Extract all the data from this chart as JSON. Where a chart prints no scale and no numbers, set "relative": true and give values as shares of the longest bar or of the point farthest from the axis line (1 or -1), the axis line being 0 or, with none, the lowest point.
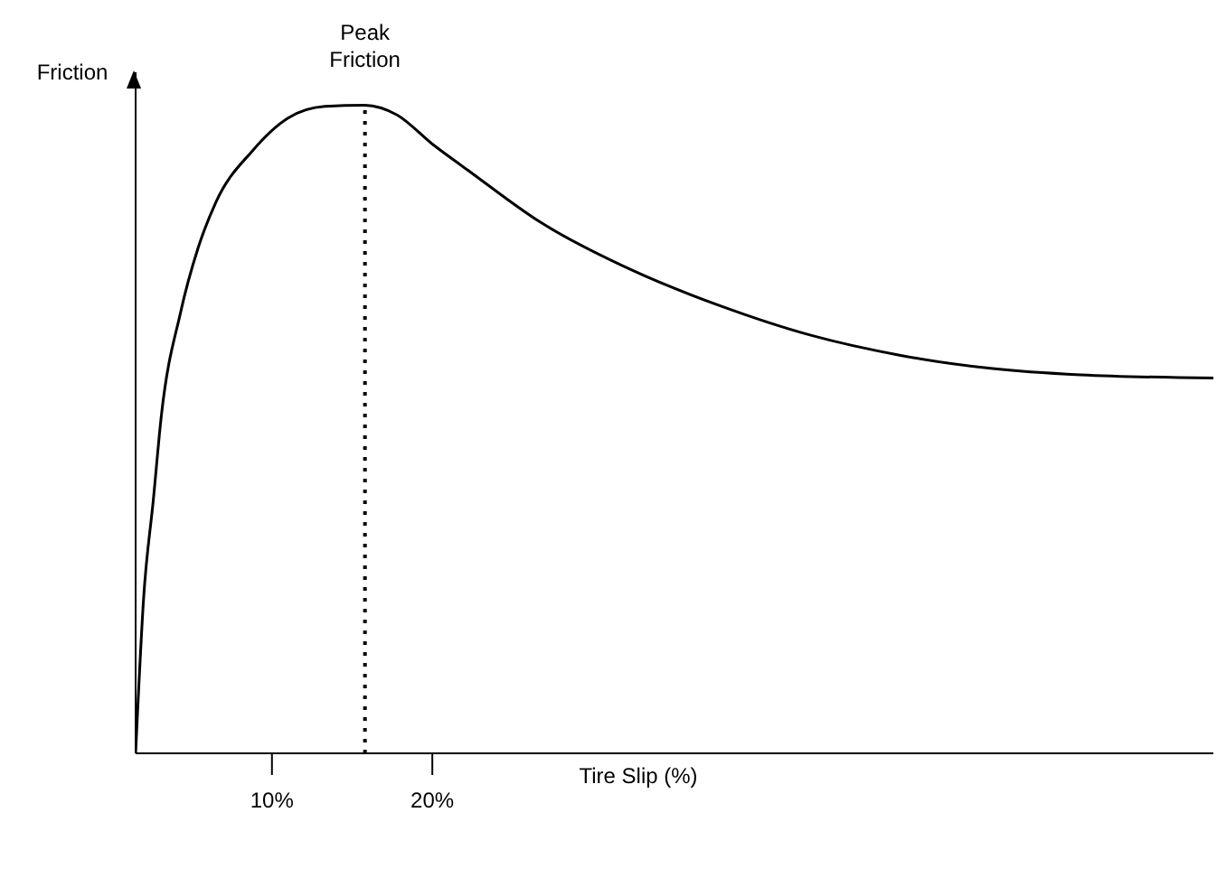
{
  "chart_data": {
    "type": "line",
    "relative": true,
    "xlabel": "Tire Slip (%)",
    "ylabel": "Friction",
    "x": [
      1.5,
      2.0,
      2.6,
      3.1,
      4.3,
      5.4,
      6.5,
      8.8,
      11.0,
      13.3,
      15.8,
      17.8,
      20.0,
      22.2,
      26.7,
      32.4,
      38.0,
      43.6,
      49.2,
      54.8,
      60.4,
      68.7
    ],
    "series": [
      {
        "color": "#000000",
        "values": [
          0,
          0.24,
          0.39,
          0.52,
          0.68,
          0.78,
          0.85,
          0.93,
          0.98,
          0.998,
          1,
          0.985,
          0.94,
          0.9,
          0.82,
          0.746,
          0.69,
          0.645,
          0.614,
          0.594,
          0.584,
          0.579
        ]
      }
    ],
    "xlim": [
      1.5,
      68.7
    ],
    "xticks": [
      {
        "value": 10,
        "label": "10%"
      },
      {
        "value": 20,
        "label": "20%"
      }
    ],
    "ref_lines": [
      {
        "axis": "x",
        "value": 15.8,
        "label": "Peak Friction",
        "color": "#000000",
        "line_style": "dotted"
      }
    ],
    "grid": false,
    "legend": false,
    "marker": "none",
    "line_style": "solid"
  }
}
